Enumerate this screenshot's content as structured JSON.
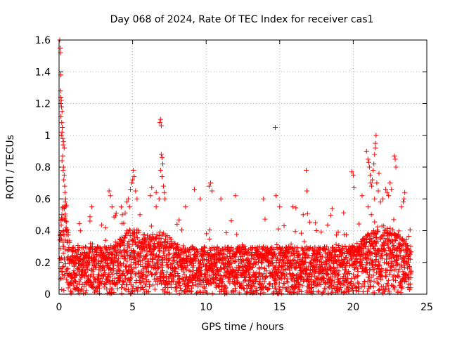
{
  "chart_data": {
    "type": "scatter",
    "title": "Day 068 of 2024, Rate Of TEC Index for receiver cas1",
    "xlabel": "GPS time / hours",
    "ylabel": "ROTI / TECUs",
    "xlim": [
      0,
      25
    ],
    "ylim": [
      0,
      1.6
    ],
    "xticks": [
      0,
      5,
      10,
      15,
      20,
      25
    ],
    "yticks": [
      0,
      0.2,
      0.4,
      0.6,
      0.8,
      1,
      1.2,
      1.4,
      1.6
    ],
    "xtick_labels": [
      "0",
      "5",
      "10",
      "15",
      "20",
      "25"
    ],
    "ytick_labels": [
      "0",
      "0.2",
      "0.4",
      "0.6",
      "0.8",
      "1",
      "1.2",
      "1.4",
      "1.6"
    ],
    "grid": true,
    "marker": "+",
    "marker_color": "#ff0000",
    "series": [
      {
        "name": "ROTI",
        "points": [
          [
            0.05,
            1.6
          ],
          [
            0.08,
            1.55
          ],
          [
            0.1,
            1.52
          ],
          [
            0.12,
            1.38
          ],
          [
            0.1,
            1.28
          ],
          [
            0.12,
            1.24
          ],
          [
            0.15,
            1.22
          ],
          [
            0.1,
            1.2
          ],
          [
            0.17,
            1.18
          ],
          [
            0.2,
            1.15
          ],
          [
            0.12,
            1.12
          ],
          [
            0.18,
            1.08
          ],
          [
            0.22,
            1.05
          ],
          [
            0.2,
            1.02
          ],
          [
            0.15,
            1.0
          ],
          [
            0.25,
            0.98
          ],
          [
            0.3,
            0.96
          ],
          [
            0.28,
            0.94
          ],
          [
            0.35,
            0.92
          ],
          [
            0.25,
            0.87
          ],
          [
            0.2,
            0.84
          ],
          [
            0.3,
            0.8
          ],
          [
            0.28,
            0.78
          ],
          [
            0.35,
            0.75
          ],
          [
            0.32,
            0.72
          ],
          [
            0.38,
            0.68
          ],
          [
            0.4,
            0.64
          ],
          [
            0.45,
            0.6
          ],
          [
            0.42,
            0.58
          ],
          [
            0.5,
            0.56
          ],
          [
            2.1,
            0.46
          ],
          [
            3.4,
            0.65
          ],
          [
            3.5,
            0.62
          ],
          [
            3.6,
            0.55
          ],
          [
            4.3,
            0.5
          ],
          [
            4.6,
            0.58
          ],
          [
            4.7,
            0.6
          ],
          [
            4.85,
            0.66
          ],
          [
            4.95,
            0.7
          ],
          [
            5.0,
            0.72
          ],
          [
            5.05,
            0.78
          ],
          [
            5.1,
            0.74
          ],
          [
            5.2,
            0.65
          ],
          [
            5.3,
            0.6
          ],
          [
            5.5,
            0.5
          ],
          [
            6.2,
            0.62
          ],
          [
            6.3,
            0.67
          ],
          [
            6.6,
            0.64
          ],
          [
            6.8,
            0.6
          ],
          [
            6.85,
            1.08
          ],
          [
            6.9,
            1.1
          ],
          [
            6.95,
            1.06
          ],
          [
            6.95,
            0.88
          ],
          [
            7.0,
            0.86
          ],
          [
            7.05,
            0.82
          ],
          [
            6.9,
            0.78
          ],
          [
            7.0,
            0.74
          ],
          [
            7.1,
            0.68
          ],
          [
            7.15,
            0.64
          ],
          [
            7.2,
            0.6
          ],
          [
            8.6,
            0.55
          ],
          [
            9.2,
            0.66
          ],
          [
            9.6,
            0.6
          ],
          [
            10.2,
            0.68
          ],
          [
            10.3,
            0.7
          ],
          [
            10.4,
            0.65
          ],
          [
            11.0,
            0.6
          ],
          [
            12.0,
            0.62
          ],
          [
            13.9,
            0.6
          ],
          [
            14.7,
            1.05
          ],
          [
            14.75,
            0.62
          ],
          [
            15.0,
            0.55
          ],
          [
            15.9,
            0.55
          ],
          [
            16.6,
            0.5
          ],
          [
            16.8,
            0.78
          ],
          [
            16.85,
            0.65
          ],
          [
            17.5,
            0.4
          ],
          [
            19.9,
            0.77
          ],
          [
            20.0,
            0.75
          ],
          [
            20.05,
            0.67
          ],
          [
            20.6,
            0.62
          ],
          [
            20.9,
            0.9
          ],
          [
            21.0,
            0.85
          ],
          [
            21.05,
            0.83
          ],
          [
            21.1,
            0.8
          ],
          [
            21.15,
            0.75
          ],
          [
            21.2,
            0.7
          ],
          [
            21.25,
            0.68
          ],
          [
            21.3,
            0.72
          ],
          [
            21.35,
            0.78
          ],
          [
            21.4,
            0.82
          ],
          [
            21.45,
            0.88
          ],
          [
            21.5,
            0.95
          ],
          [
            21.55,
            1.0
          ],
          [
            21.5,
            0.92
          ],
          [
            21.45,
            0.6
          ],
          [
            21.6,
            0.7
          ],
          [
            21.7,
            0.65
          ],
          [
            21.75,
            0.76
          ],
          [
            21.85,
            0.58
          ],
          [
            22.0,
            0.6
          ],
          [
            22.2,
            0.66
          ],
          [
            22.3,
            0.64
          ],
          [
            22.4,
            0.62
          ],
          [
            22.5,
            0.7
          ],
          [
            22.6,
            0.66
          ],
          [
            22.8,
            0.87
          ],
          [
            22.85,
            0.85
          ],
          [
            22.9,
            0.8
          ],
          [
            23.4,
            0.58
          ],
          [
            23.45,
            0.6
          ],
          [
            23.5,
            0.64
          ]
        ]
      }
    ]
  }
}
